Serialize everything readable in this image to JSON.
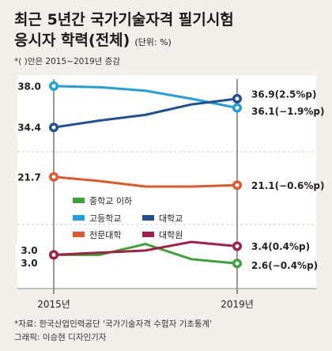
{
  "title": {
    "line1": "최근 5년간 국가기술자격 필기시험",
    "line2": "응시자 학력(전체)",
    "unit": "(단위: %)"
  },
  "note": "*( )안은 2015~2019년 증감",
  "source": "*자료: 한국산업인력공단 '국가기술자격 수험자 기초통계'",
  "credit": "그래픽: 이승현 디자인기자",
  "chart_data": {
    "type": "line",
    "x_labels": [
      "2015년",
      "2019년"
    ],
    "x": [
      2015,
      2016,
      2017,
      2018,
      2019
    ],
    "ylim": [
      0,
      40
    ],
    "series": [
      {
        "name": "중학교 이하",
        "color": "#3aa33a",
        "values": [
          3.0,
          3.0,
          3.5,
          2.8,
          2.6
        ],
        "start_label": "3.0",
        "end_label": "2.6(−0.4%p)"
      },
      {
        "name": "고등학교",
        "color": "#1fa0dc",
        "values": [
          38.0,
          37.9,
          37.6,
          36.9,
          36.1
        ],
        "start_label": "38.0",
        "end_label": "36.1(−1.9%p)"
      },
      {
        "name": "대학교",
        "color": "#1f4f95",
        "values": [
          34.4,
          35.0,
          35.5,
          36.4,
          36.9
        ],
        "start_label": "34.4",
        "end_label": "36.9(2.5%p)"
      },
      {
        "name": "전문대학",
        "color": "#e0572a",
        "values": [
          21.7,
          21.4,
          21.0,
          21.0,
          21.1
        ],
        "start_label": "21.7",
        "end_label": "21.1(−0.6%p)"
      },
      {
        "name": "대학원",
        "color": "#a31f44",
        "values": [
          3.0,
          3.1,
          3.2,
          3.6,
          3.4
        ],
        "start_label": "3.0",
        "end_label": "3.4(0.4%p)"
      }
    ]
  }
}
